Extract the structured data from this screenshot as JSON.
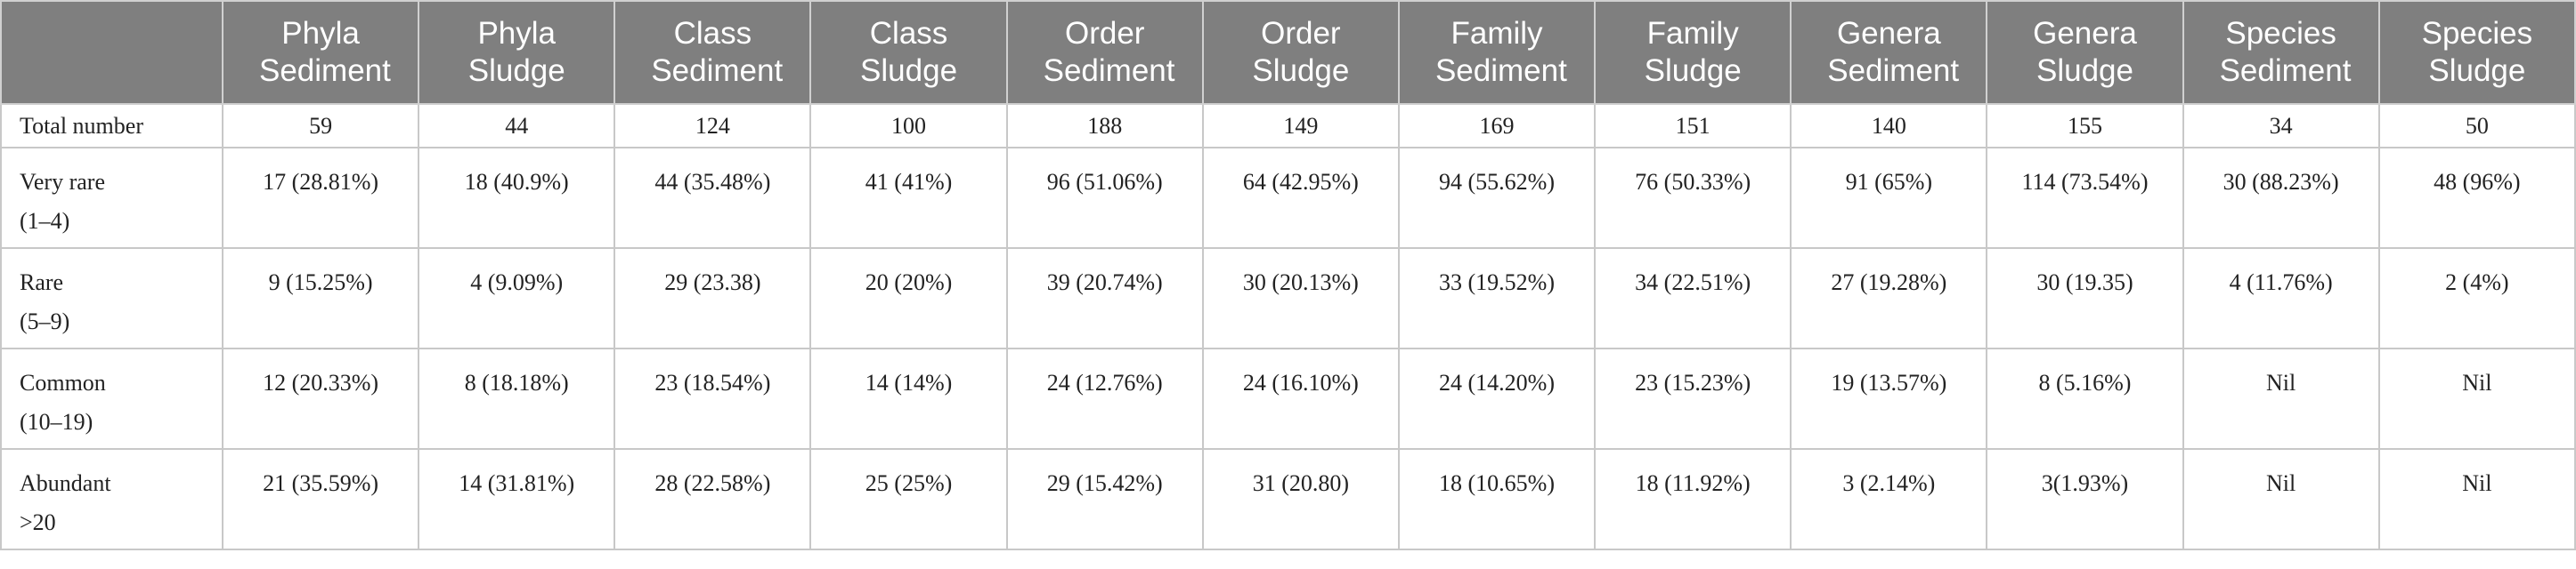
{
  "table": {
    "columns": [
      "Phyla Sediment",
      "Phyla Sludge",
      "Class Sediment",
      "Class Sludge",
      "Order Sediment",
      "Order Sludge",
      "Family Sediment",
      "Family Sludge",
      "Genera Sediment",
      "Genera Sludge",
      "Species Sediment",
      "Species Sludge"
    ],
    "rows": [
      {
        "label": "Total number",
        "cells": [
          "59",
          "44",
          "124",
          "100",
          "188",
          "149",
          "169",
          "151",
          "140",
          "155",
          "34",
          "50"
        ]
      },
      {
        "label": "Very rare",
        "range": "(1–4)",
        "cells": [
          "17 (28.81%)",
          "18 (40.9%)",
          "44 (35.48%)",
          "41 (41%)",
          "96 (51.06%)",
          "64 (42.95%)",
          "94 (55.62%)",
          "76 (50.33%)",
          "91 (65%)",
          "114 (73.54%)",
          "30 (88.23%)",
          "48 (96%)"
        ]
      },
      {
        "label": "Rare",
        "range": "(5–9)",
        "cells": [
          "9 (15.25%)",
          "4 (9.09%)",
          "29 (23.38)",
          "20 (20%)",
          "39 (20.74%)",
          "30 (20.13%)",
          "33 (19.52%)",
          "34 (22.51%)",
          "27 (19.28%)",
          "30 (19.35)",
          "4 (11.76%)",
          "2 (4%)"
        ]
      },
      {
        "label": "Common",
        "range": "(10–19)",
        "cells": [
          "12 (20.33%)",
          "8 (18.18%)",
          "23 (18.54%)",
          "14 (14%)",
          "24 (12.76%)",
          "24 (16.10%)",
          "24 (14.20%)",
          "23 (15.23%)",
          "19 (13.57%)",
          "8 (5.16%)",
          "Nil",
          "Nil"
        ]
      },
      {
        "label": "Abundant",
        "range": ">20",
        "cells": [
          "21 (35.59%)",
          "14 (31.81%)",
          "28 (22.58%)",
          "25 (25%)",
          "29 (15.42%)",
          "31 (20.80)",
          "18 (10.65%)",
          "18 (11.92%)",
          "3 (2.14%)",
          "3(1.93%)",
          "Nil",
          "Nil"
        ]
      }
    ]
  }
}
